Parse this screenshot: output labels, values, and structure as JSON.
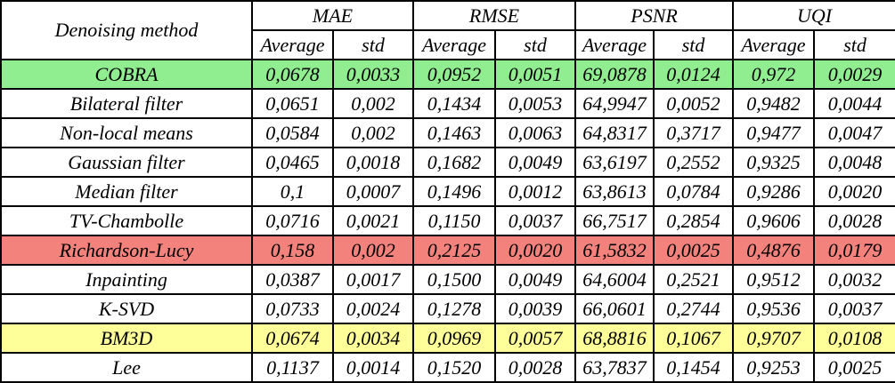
{
  "colors": {
    "green": "#90ee90",
    "red": "#f4827c",
    "yellow": "#ffff99",
    "border": "#000000",
    "background": "#ffffff"
  },
  "chart_data": {
    "type": "table",
    "title": "",
    "columns": [
      "Denoising method",
      "MAE Average",
      "MAE std",
      "RMSE Average",
      "RMSE std",
      "PSNR Average",
      "PSNR std",
      "UQI Average",
      "UQI std"
    ],
    "decimal_separator": ",",
    "rows": [
      [
        "COBRA",
        "0,0678",
        "0,0033",
        "0,0952",
        "0,0051",
        "69,0878",
        "0,0124",
        "0,972",
        "0,0029"
      ],
      [
        "Bilateral filter",
        "0,0651",
        "0,002",
        "0,1434",
        "0,0053",
        "64,9947",
        "0,0052",
        "0,9482",
        "0,0044"
      ],
      [
        "Non-local means",
        "0,0584",
        "0,002",
        "0,1463",
        "0,0063",
        "64,8317",
        "0,3717",
        "0,9477",
        "0,0047"
      ],
      [
        "Gaussian filter",
        "0,0465",
        "0,0018",
        "0,1682",
        "0,0049",
        "63,6197",
        "0,2552",
        "0,9325",
        "0,0048"
      ],
      [
        "Median filter",
        "0,1",
        "0,0007",
        "0,1496",
        "0,0012",
        "63,8613",
        "0,0784",
        "0,9286",
        "0,0020"
      ],
      [
        "TV-Chambolle",
        "0,0716",
        "0,0021",
        "0,1150",
        "0,0037",
        "66,7517",
        "0,2854",
        "0,9606",
        "0,0028"
      ],
      [
        "Richardson-Lucy",
        "0,158",
        "0,002",
        "0,2125",
        "0,0020",
        "61,5832",
        "0,0025",
        "0,4876",
        "0,0179"
      ],
      [
        "Inpainting",
        "0,0387",
        "0,0017",
        "0,1500",
        "0,0049",
        "64,6004",
        "0,2521",
        "0,9512",
        "0,0032"
      ],
      [
        "K-SVD",
        "0,0733",
        "0,0024",
        "0,1278",
        "0,0039",
        "66,0601",
        "0,2744",
        "0,9536",
        "0,0037"
      ],
      [
        "BM3D",
        "0,0674",
        "0,0034",
        "0,0969",
        "0,0057",
        "68,8816",
        "0,1067",
        "0,9707",
        "0,0108"
      ],
      [
        "Lee",
        "0,1137",
        "0,0014",
        "0,1520",
        "0,0028",
        "63,7837",
        "0,1454",
        "0,9253",
        "0,0025"
      ]
    ]
  },
  "table": {
    "method_header": "Denoising method",
    "metrics": [
      "MAE",
      "RMSE",
      "PSNR",
      "UQI"
    ],
    "sub_headers": [
      "Average",
      "std"
    ],
    "rows": [
      {
        "method": "COBRA",
        "highlight": "green",
        "values": [
          "0,0678",
          "0,0033",
          "0,0952",
          "0,0051",
          "69,0878",
          "0,0124",
          "0,972",
          "0,0029"
        ]
      },
      {
        "method": "Bilateral filter",
        "highlight": null,
        "values": [
          "0,0651",
          "0,002",
          "0,1434",
          "0,0053",
          "64,9947",
          "0,0052",
          "0,9482",
          "0,0044"
        ]
      },
      {
        "method": "Non-local means",
        "highlight": null,
        "values": [
          "0,0584",
          "0,002",
          "0,1463",
          "0,0063",
          "64,8317",
          "0,3717",
          "0,9477",
          "0,0047"
        ]
      },
      {
        "method": "Gaussian filter",
        "highlight": null,
        "values": [
          "0,0465",
          "0,0018",
          "0,1682",
          "0,0049",
          "63,6197",
          "0,2552",
          "0,9325",
          "0,0048"
        ]
      },
      {
        "method": "Median filter",
        "highlight": null,
        "values": [
          "0,1",
          "0,0007",
          "0,1496",
          "0,0012",
          "63,8613",
          "0,0784",
          "0,9286",
          "0,0020"
        ]
      },
      {
        "method": "TV-Chambolle",
        "highlight": null,
        "values": [
          "0,0716",
          "0,0021",
          "0,1150",
          "0,0037",
          "66,7517",
          "0,2854",
          "0,9606",
          "0,0028"
        ]
      },
      {
        "method": "Richardson-Lucy",
        "highlight": "red",
        "values": [
          "0,158",
          "0,002",
          "0,2125",
          "0,0020",
          "61,5832",
          "0,0025",
          "0,4876",
          "0,0179"
        ]
      },
      {
        "method": "Inpainting",
        "highlight": null,
        "values": [
          "0,0387",
          "0,0017",
          "0,1500",
          "0,0049",
          "64,6004",
          "0,2521",
          "0,9512",
          "0,0032"
        ]
      },
      {
        "method": "K-SVD",
        "highlight": null,
        "values": [
          "0,0733",
          "0,0024",
          "0,1278",
          "0,0039",
          "66,0601",
          "0,2744",
          "0,9536",
          "0,0037"
        ]
      },
      {
        "method": "BM3D",
        "highlight": "yellow",
        "values": [
          "0,0674",
          "0,0034",
          "0,0969",
          "0,0057",
          "68,8816",
          "0,1067",
          "0,9707",
          "0,0108"
        ]
      },
      {
        "method": "Lee",
        "highlight": null,
        "values": [
          "0,1137",
          "0,0014",
          "0,1520",
          "0,0028",
          "63,7837",
          "0,1454",
          "0,9253",
          "0,0025"
        ]
      }
    ]
  }
}
